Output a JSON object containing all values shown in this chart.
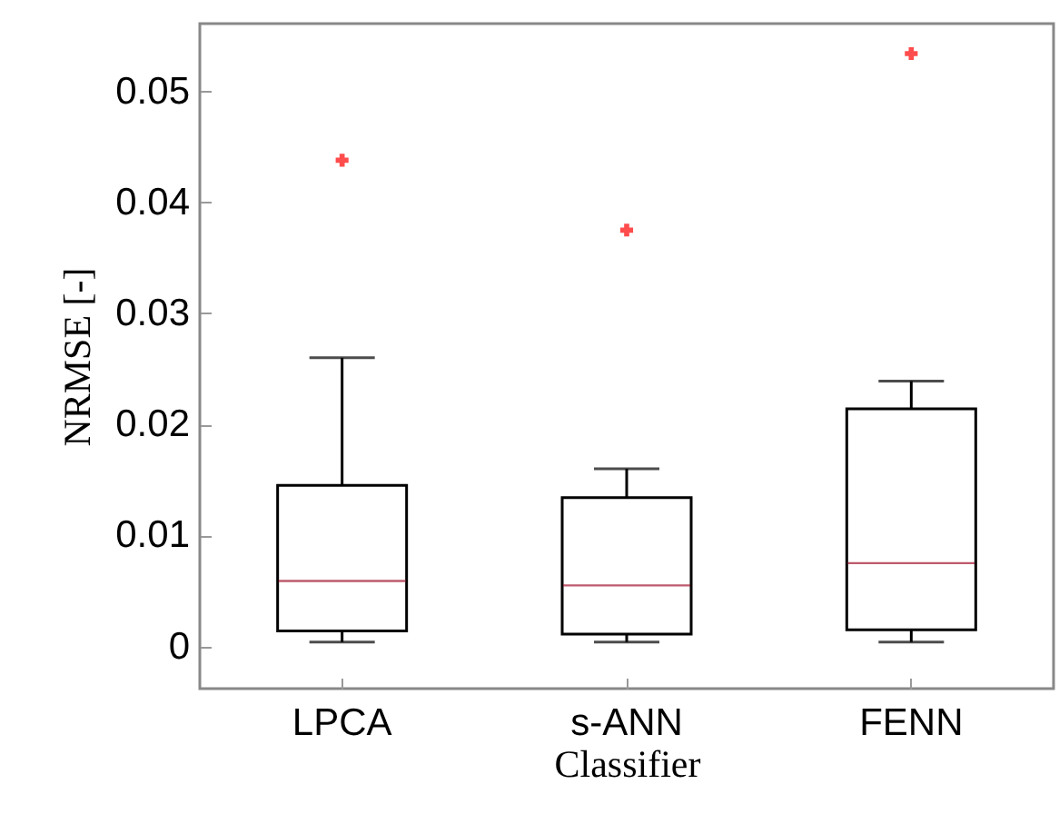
{
  "chart_data": {
    "type": "box",
    "xlabel": "Classifier",
    "ylabel": "NRMSE [-]",
    "categories": [
      "LPCA",
      "s-ANN",
      "FENN"
    ],
    "series": [
      {
        "color": "#000000",
        "boxes": [
          {
            "low": 0.0004,
            "q1": 0.0014,
            "median": 0.0059,
            "q3": 0.0145,
            "high": 0.026,
            "outliers": [
              0.0438
            ]
          },
          {
            "low": 0.0004,
            "q1": 0.0011,
            "median": 0.0055,
            "q3": 0.0134,
            "high": 0.016,
            "outliers": [
              0.0375
            ]
          },
          {
            "low": 0.0004,
            "q1": 0.0015,
            "median": 0.0075,
            "q3": 0.0214,
            "high": 0.0239,
            "outliers": [
              0.0534
            ]
          }
        ]
      }
    ],
    "ylim": [
      -0.0038,
      0.0561
    ],
    "yticks": [
      0,
      0.01,
      0.02,
      0.03,
      0.04,
      0.05
    ],
    "grid": false
  }
}
